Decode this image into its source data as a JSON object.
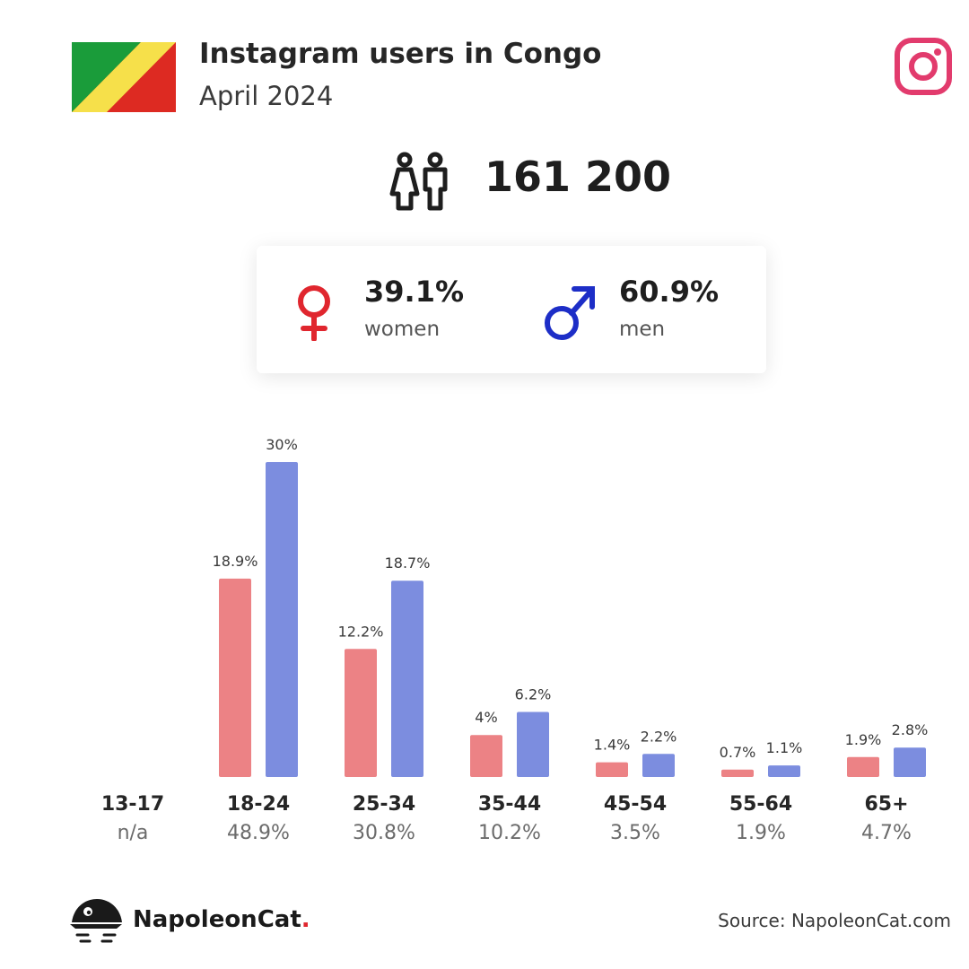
{
  "header": {
    "title": "Instagram users in Congo",
    "subtitle": "April 2024",
    "flag_icon": "congo-flag-icon",
    "platform_icon": "instagram-icon"
  },
  "summary": {
    "total_users": "161 200",
    "icon": "people-icon",
    "women": {
      "pct": "39.1%",
      "label": "women",
      "icon": "female-symbol-icon"
    },
    "men": {
      "pct": "60.9%",
      "label": "men",
      "icon": "male-symbol-icon"
    }
  },
  "colors": {
    "women": "#ec8285",
    "men": "#7c8ddf",
    "female_symbol": "#e0262e",
    "male_symbol": "#1d2ec7",
    "instagram": "#e23b6d",
    "flag_green": "#1a9c3a",
    "flag_yellow": "#f6e04a",
    "flag_red": "#dd2a22"
  },
  "chart_data": {
    "type": "bar",
    "categories": [
      "13-17",
      "18-24",
      "25-34",
      "35-44",
      "45-54",
      "55-64",
      "65+"
    ],
    "category_totals": [
      "n/a",
      "48.9%",
      "30.8%",
      "10.2%",
      "3.5%",
      "1.9%",
      "4.7%"
    ],
    "series": [
      {
        "name": "women",
        "values": [
          null,
          18.9,
          12.2,
          4,
          1.4,
          0.7,
          1.9
        ],
        "labels": [
          "",
          "18.9%",
          "12.2%",
          "4%",
          "1.4%",
          "0.7%",
          "1.9%"
        ]
      },
      {
        "name": "men",
        "values": [
          null,
          30,
          18.7,
          6.2,
          2.2,
          1.1,
          2.8
        ],
        "labels": [
          "",
          "30%",
          "18.7%",
          "6.2%",
          "2.2%",
          "1.1%",
          "2.8%"
        ]
      }
    ],
    "grid": false,
    "legend": "none"
  },
  "footer": {
    "brand": "NapoleonCat",
    "brand_dot": ".",
    "source": "Source: NapoleonCat.com",
    "logo_icon": "napoleoncat-logo-icon"
  }
}
